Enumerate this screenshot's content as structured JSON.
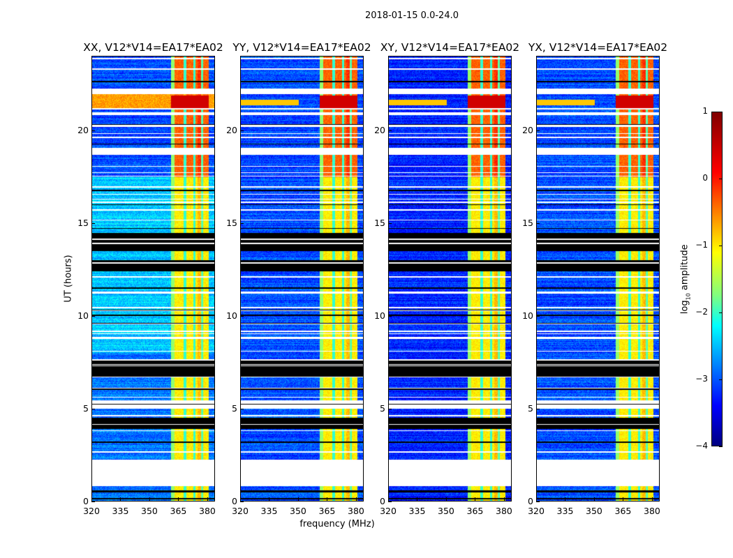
{
  "chart_data": {
    "type": "heatmap",
    "title": "2018-01-15 0.0-24.0",
    "xlabel": "frequency (MHz)",
    "ylabel": "UT (hours)",
    "xlim": [
      320,
      384
    ],
    "ylim": [
      0,
      24
    ],
    "xticks": [
      "320",
      "335",
      "350",
      "365",
      "380"
    ],
    "xtick_values": [
      320,
      335,
      350,
      365,
      380
    ],
    "yticks": [
      "0",
      "5",
      "10",
      "15",
      "20"
    ],
    "ytick_values": [
      0,
      5,
      10,
      15,
      20
    ],
    "panels": [
      {
        "title": "XX, V12*V14=EA17*EA02",
        "background_log_amp": -2.4
      },
      {
        "title": "YY, V12*V14=EA17*EA02",
        "background_log_amp": -3.0
      },
      {
        "title": "XY, V12*V14=EA17*EA02",
        "background_log_amp": -3.2
      },
      {
        "title": "YX, V12*V14=EA17*EA02",
        "background_log_amp": -3.0
      }
    ],
    "rfi_band_mhz": [
      361,
      381
    ],
    "flagged_black_ut": [
      [
        12.4,
        13.0
      ],
      [
        13.5,
        14.5
      ],
      [
        6.7,
        7.6
      ],
      [
        3.9,
        4.5
      ]
    ],
    "no_data_white_ut": [
      [
        0.8,
        2.2
      ],
      [
        5.0,
        5.4
      ],
      [
        18.7,
        19.1
      ],
      [
        22.0,
        22.3
      ]
    ],
    "colorbar": {
      "label": "log10 amplitude",
      "label_main": "log",
      "label_sub": "10",
      "label_rest": " amplitude",
      "range": [
        -4,
        1
      ],
      "ticks": [
        "1",
        "0",
        "−1",
        "−2",
        "−3",
        "−4"
      ],
      "tick_values": [
        1,
        0,
        -1,
        -2,
        -3,
        -4
      ],
      "colormap": "jet"
    }
  }
}
